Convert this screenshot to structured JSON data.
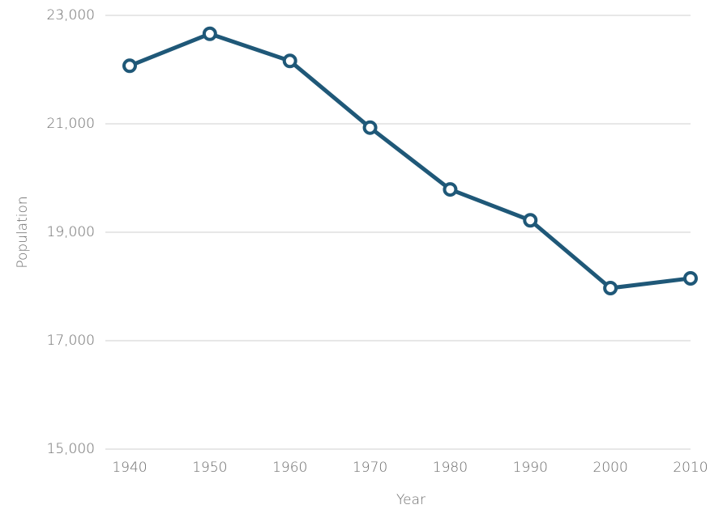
{
  "chart_data": {
    "type": "line",
    "x_label": "Year",
    "y_label": "Population",
    "x": [
      1940,
      1950,
      1960,
      1970,
      1980,
      1990,
      2000,
      2010
    ],
    "series": [
      {
        "color": "#1f5878",
        "values": [
          22070,
          22660,
          22160,
          20930,
          19790,
          19220,
          17970,
          18150
        ]
      }
    ],
    "xlim": [
      1940,
      2010
    ],
    "xticks": [
      1940,
      1950,
      1960,
      1970,
      1980,
      1990,
      2000,
      2010
    ],
    "ylim": [
      15000,
      23000
    ],
    "yticks": [
      {
        "value": 15000,
        "label": "15,000"
      },
      {
        "value": 17000,
        "label": "17,000"
      },
      {
        "value": 19000,
        "label": "19,000"
      },
      {
        "value": 21000,
        "label": "21,000"
      },
      {
        "value": 23000,
        "label": "23,000"
      }
    ],
    "grid": true
  }
}
